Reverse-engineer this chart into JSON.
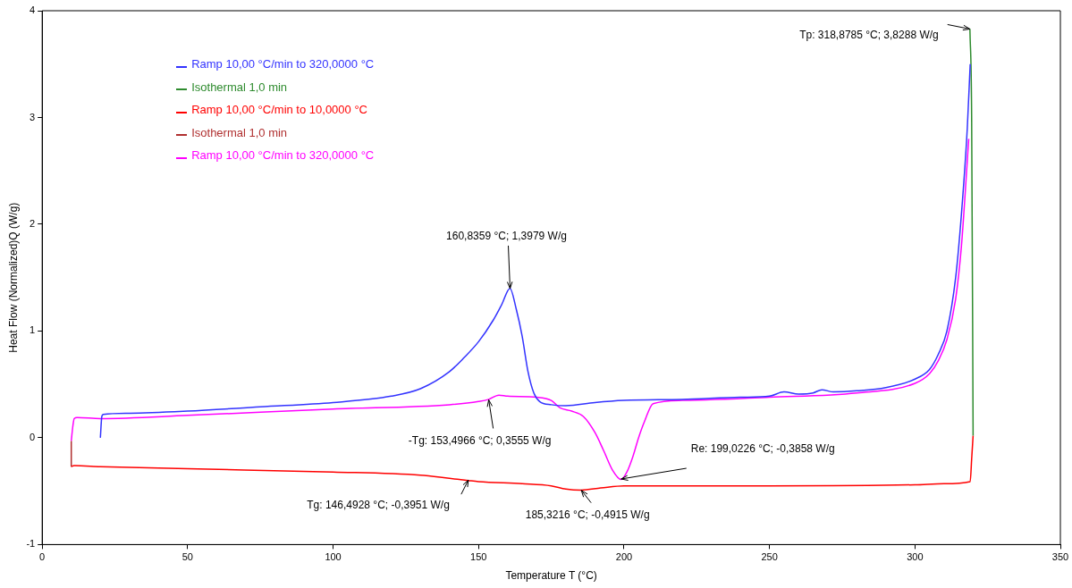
{
  "chart_data": {
    "type": "line",
    "xlabel": "Temperature T (°C)",
    "ylabel": "Heat Flow (Normalized)Q (W/g)",
    "xlim": [
      0,
      350
    ],
    "xticks": [
      0,
      50,
      100,
      150,
      200,
      250,
      300,
      350
    ],
    "ylim": [
      -1,
      4
    ],
    "yticks": [
      -1,
      0,
      1,
      2,
      3,
      4
    ],
    "grid": false,
    "legend": "top left",
    "marker": "none",
    "line_style": "solid",
    "series": [
      {
        "name": "Ramp 10,00 °C/min to 320,0000 °C",
        "color": "#3333ff",
        "x": [
          20,
          20.5,
          21,
          30,
          50,
          75,
          100,
          120,
          130,
          140,
          145,
          150,
          155,
          158,
          160.8,
          163,
          165,
          167,
          169,
          171,
          175,
          180,
          190,
          200,
          220,
          240,
          250,
          255,
          260,
          265,
          268,
          272,
          280,
          290,
          300,
          305,
          308,
          311,
          314,
          316,
          318,
          319
        ],
        "values": [
          0,
          0.2,
          0.22,
          0.23,
          0.25,
          0.29,
          0.33,
          0.39,
          0.46,
          0.62,
          0.75,
          0.9,
          1.1,
          1.25,
          1.4,
          1.2,
          0.95,
          0.62,
          0.42,
          0.34,
          0.31,
          0.3,
          0.33,
          0.35,
          0.36,
          0.38,
          0.39,
          0.43,
          0.41,
          0.42,
          0.45,
          0.43,
          0.44,
          0.47,
          0.55,
          0.64,
          0.78,
          1.0,
          1.5,
          2.1,
          2.9,
          3.5
        ]
      },
      {
        "name": "Isothermal 1,0 min",
        "color": "#2e8b2e",
        "x": [
          318.9,
          319.5,
          320
        ],
        "values": [
          3.83,
          3.0,
          0.02
        ]
      },
      {
        "name": "Ramp 10,00 °C/min to 10,0000 °C",
        "color": "#ff0000",
        "x": [
          320,
          319.5,
          319,
          310,
          300,
          250,
          200,
          192,
          185.3,
          180,
          175,
          165,
          150,
          146.5,
          140,
          130,
          100,
          50,
          20,
          11,
          10
        ],
        "values": [
          0.02,
          -0.2,
          -0.41,
          -0.43,
          -0.44,
          -0.45,
          -0.45,
          -0.47,
          -0.49,
          -0.48,
          -0.45,
          -0.43,
          -0.41,
          -0.4,
          -0.38,
          -0.35,
          -0.32,
          -0.29,
          -0.27,
          -0.26,
          -0.27
        ]
      },
      {
        "name": "Isothermal 1,0 min",
        "color": "#b03030",
        "x": [
          10,
          10
        ],
        "values": [
          -0.27,
          -0.03
        ]
      },
      {
        "name": "Ramp 10,00 °C/min to 320,0000 °C",
        "color": "#ff00ff",
        "x": [
          10,
          10.5,
          11,
          12,
          20,
          50,
          100,
          140,
          150,
          153.5,
          157,
          160,
          170,
          175,
          178,
          182,
          186,
          190,
          193,
          196,
          199,
          201,
          203,
          205,
          207,
          210,
          220,
          250,
          280,
          300,
          305,
          308,
          311,
          314,
          316,
          318.5
        ],
        "values": [
          -0.03,
          0.1,
          0.18,
          0.19,
          0.18,
          0.21,
          0.27,
          0.31,
          0.34,
          0.36,
          0.4,
          0.39,
          0.38,
          0.35,
          0.28,
          0.25,
          0.2,
          0.05,
          -0.12,
          -0.3,
          -0.39,
          -0.32,
          -0.18,
          0.0,
          0.15,
          0.32,
          0.35,
          0.38,
          0.42,
          0.51,
          0.6,
          0.72,
          0.92,
          1.3,
          1.8,
          2.8
        ]
      }
    ],
    "annotations": [
      {
        "text": "Tp: 318,8785 °C; 3,8288 W/g",
        "x": 318.8785,
        "y": 3.8288
      },
      {
        "text": "160,8359 °C; 1,3979 W/g",
        "x": 160.8359,
        "y": 1.3979
      },
      {
        "text": "-Tg: 153,4966 °C; 0,3555 W/g",
        "x": 153.4966,
        "y": 0.3555
      },
      {
        "text": "Re: 199,0226 °C; -0,3858 W/g",
        "x": 199.0226,
        "y": -0.3858
      },
      {
        "text": "Tg: 146,4928 °C; -0,3951 W/g",
        "x": 146.4928,
        "y": -0.3951
      },
      {
        "text": "185,3216 °C; -0,4915 W/g",
        "x": 185.3216,
        "y": -0.4915
      }
    ]
  }
}
